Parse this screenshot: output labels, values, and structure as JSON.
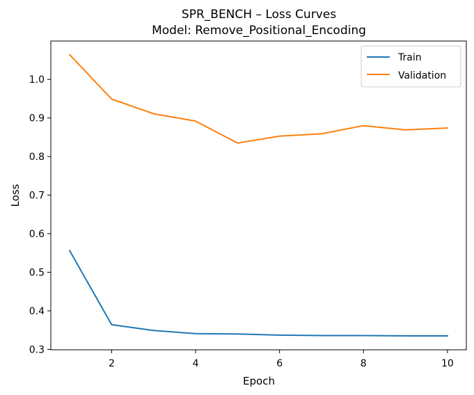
{
  "chart_data": {
    "type": "line",
    "title": "SPR_BENCH – Loss Curves",
    "subtitle": "Model: Remove_Positional_Encoding",
    "xlabel": "Epoch",
    "ylabel": "Loss",
    "x": [
      1,
      2,
      3,
      4,
      5,
      6,
      7,
      8,
      9,
      10
    ],
    "xlim": [
      0.55,
      10.45
    ],
    "ylim": [
      0.299,
      1.0995
    ],
    "xticks": [
      2,
      4,
      6,
      8,
      10
    ],
    "yticks": [
      0.3,
      0.4,
      0.5,
      0.6,
      0.7,
      0.8,
      0.9,
      1.0
    ],
    "xtick_labels": [
      "2",
      "4",
      "6",
      "8",
      "10"
    ],
    "ytick_labels": [
      "0.3",
      "0.4",
      "0.5",
      "0.6",
      "0.7",
      "0.8",
      "0.9",
      "1.0"
    ],
    "grid": false,
    "legend_position": "top-right",
    "series": [
      {
        "name": "Train",
        "color": "#1f77b4",
        "values": [
          0.556,
          0.364,
          0.349,
          0.341,
          0.34,
          0.337,
          0.336,
          0.336,
          0.335,
          0.335
        ]
      },
      {
        "name": "Validation",
        "color": "#ff7f0e",
        "values": [
          1.064,
          0.949,
          0.911,
          0.892,
          0.835,
          0.853,
          0.859,
          0.88,
          0.869,
          0.874
        ]
      }
    ]
  }
}
